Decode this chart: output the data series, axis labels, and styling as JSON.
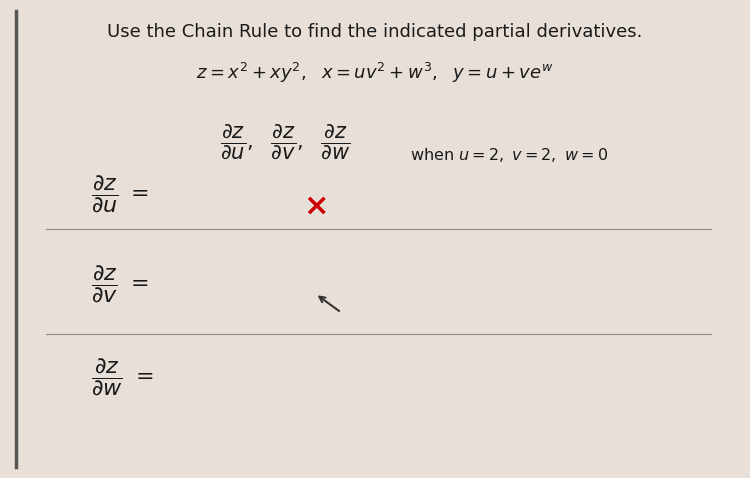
{
  "background_color": "#e8e0d8",
  "panel_color": "#f5f0eb",
  "title": "Use the Chain Rule to find the indicated partial derivatives.",
  "equation_line": "z = x² + xy²,  x = uv² + w³,  y = u + ve^w",
  "partials_label": "\\frac{\\partial z}{\\partial u},\\; \\frac{\\partial z}{\\partial v},\\; \\frac{\\partial z}{\\partial w}",
  "when_text": "when u = 2, v = 2, w = 0",
  "answer_labels": [
    "\\frac{\\partial z}{\\partial u} =",
    "\\frac{\\partial z}{\\partial v} =",
    "\\frac{\\partial z}{\\partial w} ="
  ],
  "x_mark_color": "#cc0000",
  "text_color": "#1a1a1a",
  "line_color": "#888888",
  "title_fontsize": 13,
  "eq_fontsize": 13,
  "partial_fontsize": 15,
  "answer_fontsize": 16
}
